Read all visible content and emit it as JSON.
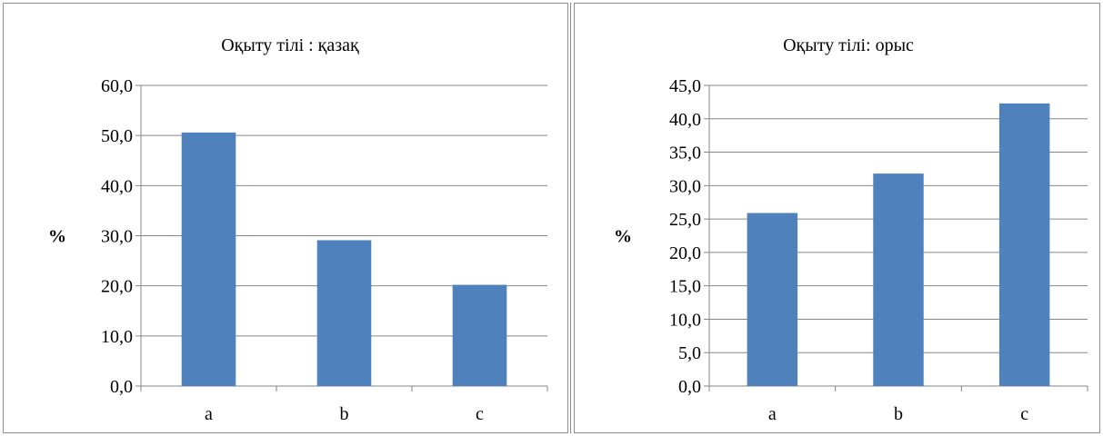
{
  "chart_data": [
    {
      "type": "bar",
      "title": "Оқыту тілі : қазақ",
      "xlabel": "",
      "ylabel": "%",
      "categories": [
        "a",
        "b",
        "c"
      ],
      "values": [
        50.6,
        29.1,
        20.2
      ],
      "ylim": [
        0,
        60
      ],
      "yticks": [
        "0,0",
        "10,0",
        "20,0",
        "30,0",
        "40,0",
        "50,0",
        "60,0"
      ],
      "grid": true,
      "bar_color": "#4f81bd"
    },
    {
      "type": "bar",
      "title": "Оқыту  тілі: орыс",
      "xlabel": "",
      "ylabel": "%",
      "categories": [
        "a",
        "b",
        "c"
      ],
      "values": [
        25.9,
        31.8,
        42.3
      ],
      "ylim": [
        0,
        45
      ],
      "yticks": [
        "0,0",
        "5,0",
        "10,0",
        "15,0",
        "20,0",
        "25,0",
        "30,0",
        "35,0",
        "40,0",
        "45,0"
      ],
      "grid": true,
      "bar_color": "#4f81bd"
    }
  ]
}
